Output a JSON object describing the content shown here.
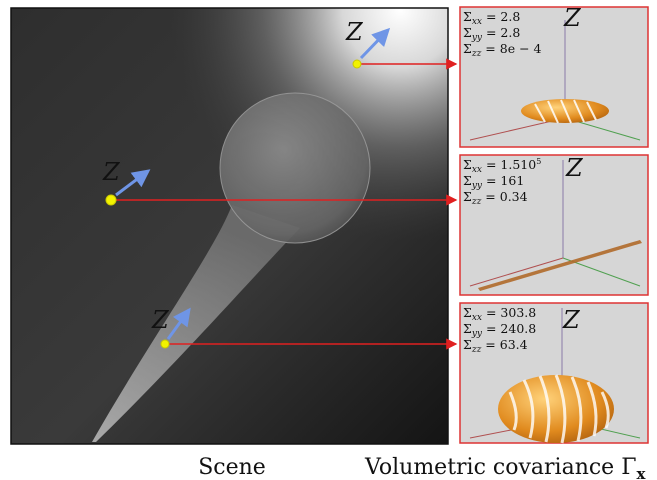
{
  "captions": {
    "scene": "Scene",
    "covariance": "Volumetric covariance Γ",
    "covariance_sub": "x"
  },
  "axis_label": "Z",
  "panels": [
    {
      "stats": [
        {
          "sym": "Σ",
          "sub": "xx",
          "val": " = 2.8"
        },
        {
          "sym": "Σ",
          "sub": "yy",
          "val": " = 2.8"
        },
        {
          "sym": "Σ",
          "sub": "zz",
          "val": " = 8e − 4"
        }
      ]
    },
    {
      "stats": [
        {
          "sym": "Σ",
          "sub": "xx",
          "val": " = 1.510",
          "sup": "5"
        },
        {
          "sym": "Σ",
          "sub": "yy",
          "val": " = 161"
        },
        {
          "sym": "Σ",
          "sub": "zz",
          "val": " = 0.34"
        }
      ]
    },
    {
      "stats": [
        {
          "sym": "Σ",
          "sub": "xx",
          "val": " = 303.8"
        },
        {
          "sym": "Σ",
          "sub": "yy",
          "val": " = 240.8"
        },
        {
          "sym": "Σ",
          "sub": "zz",
          "val": " = 63.4"
        }
      ]
    }
  ],
  "colors": {
    "connector": "#e02020",
    "marker": "#f2f200",
    "z_arrow": "#6f95e6",
    "panel_border": "#dd3333",
    "panel_bg": "#d6d6d6",
    "ellipsoid": "#e08a1e"
  }
}
